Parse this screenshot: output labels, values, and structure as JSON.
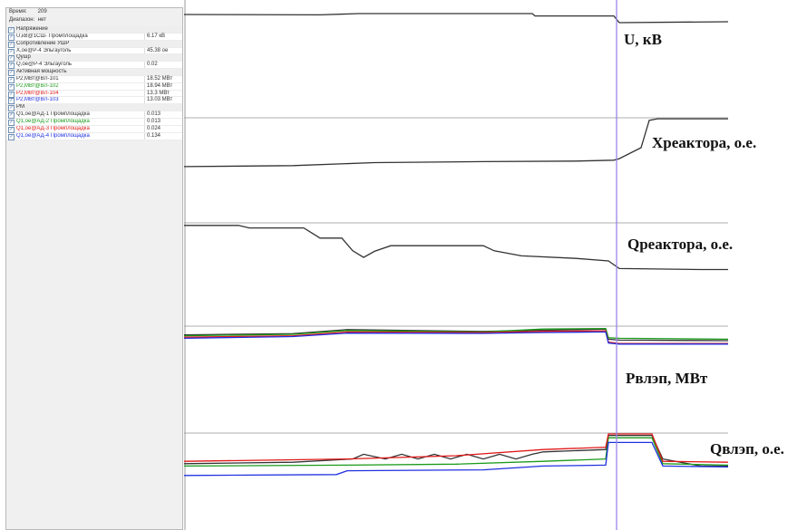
{
  "info": {
    "time_label": "Время:",
    "time_value": "209",
    "range_label": "Диапазон:",
    "range_value": "нет"
  },
  "signals": [
    {
      "name": "Напряжение",
      "value": "",
      "group": true
    },
    {
      "name": "U,кВ@1СШ- Промплощадка",
      "value": "6.17 кВ",
      "color": "#333333"
    },
    {
      "name": "Сопротивление УШР",
      "value": "",
      "group": true
    },
    {
      "name": "X,ое@Р-4 Эльгауголь",
      "value": "45.38 ое",
      "color": "#333333"
    },
    {
      "name": "Qушр",
      "value": "",
      "group": true
    },
    {
      "name": "Q,ое@Р-4 Эльгауголь",
      "value": "0.02",
      "color": "#333333"
    },
    {
      "name": "Активная мощность",
      "value": "",
      "group": true
    },
    {
      "name": "P2,МВт@ВЛ-101",
      "value": "18.52 МВт",
      "color": "#333333"
    },
    {
      "name": "P2,МВт@ВЛ-102",
      "value": "18.94 МВт",
      "color": "#1a9a1a"
    },
    {
      "name": "P2,МВт@ВЛ-104",
      "value": "13.3 МВт",
      "color": "#e01818"
    },
    {
      "name": "P2,МВт@ВЛ-103",
      "value": "13.03 МВт",
      "color": "#2030e0"
    },
    {
      "name": "PM",
      "value": "",
      "group": true
    },
    {
      "name": "Q1,ое@АД-1 Промплощадка",
      "value": "0.013",
      "color": "#333333"
    },
    {
      "name": "Q1,ое@АД-2 Промплощадка",
      "value": "0.013",
      "color": "#1a9a1a"
    },
    {
      "name": "Q1,ое@АД-3 Промплощадка",
      "value": "0.024",
      "color": "#e01818"
    },
    {
      "name": "Q1,ое@АД-4 Промплощадка",
      "value": "0.134",
      "color": "#2030e0"
    }
  ],
  "chart_data": {
    "type": "line",
    "channels": [
      {
        "label": "U, кВ",
        "series": [
          {
            "color": "#333333",
            "points": [
              [
                0,
                0.3
              ],
              [
                0.25,
                0.32
              ],
              [
                0.32,
                0.25
              ],
              [
                0.64,
                0.25
              ],
              [
                0.645,
                0.38
              ],
              [
                0.79,
                0.38
              ],
              [
                0.8,
                0.75
              ],
              [
                1,
                0.7
              ]
            ]
          }
        ]
      },
      {
        "label": "Xреактора, о.е.",
        "series": [
          {
            "color": "#333333",
            "points": [
              [
                0,
                0.98
              ],
              [
                0.2,
                0.96
              ],
              [
                0.35,
                0.9
              ],
              [
                0.55,
                0.88
              ],
              [
                0.72,
                0.87
              ],
              [
                0.79,
                0.85
              ],
              [
                0.8,
                0.82
              ],
              [
                0.84,
                0.6
              ],
              [
                0.855,
                0.05
              ],
              [
                0.87,
                0.02
              ],
              [
                1,
                0.02
              ]
            ]
          }
        ]
      },
      {
        "label": "Qреактора, о.е.",
        "series": [
          {
            "color": "#333333",
            "points": [
              [
                0,
                0.05
              ],
              [
                0.1,
                0.05
              ],
              [
                0.12,
                0.1
              ],
              [
                0.22,
                0.1
              ],
              [
                0.25,
                0.3
              ],
              [
                0.29,
                0.3
              ],
              [
                0.31,
                0.55
              ],
              [
                0.33,
                0.68
              ],
              [
                0.35,
                0.56
              ],
              [
                0.38,
                0.45
              ],
              [
                0.55,
                0.45
              ],
              [
                0.57,
                0.55
              ],
              [
                0.62,
                0.65
              ],
              [
                0.72,
                0.7
              ],
              [
                0.78,
                0.75
              ],
              [
                0.8,
                0.9
              ],
              [
                0.95,
                0.92
              ],
              [
                1,
                0.92
              ]
            ]
          }
        ]
      },
      {
        "label": "Pвлэп, МВт",
        "series": [
          {
            "color": "#333333",
            "points": [
              [
                0,
                0.3
              ],
              [
                0.2,
                0.26
              ],
              [
                0.3,
                0.12
              ],
              [
                0.55,
                0.18
              ],
              [
                0.66,
                0.14
              ],
              [
                0.775,
                0.1
              ],
              [
                0.78,
                0.45
              ],
              [
                0.8,
                0.48
              ],
              [
                1,
                0.5
              ]
            ]
          },
          {
            "color": "#1a9a1a",
            "points": [
              [
                0,
                0.33
              ],
              [
                0.2,
                0.28
              ],
              [
                0.3,
                0.15
              ],
              [
                0.55,
                0.2
              ],
              [
                0.66,
                0.1
              ],
              [
                0.775,
                0.08
              ],
              [
                0.78,
                0.4
              ],
              [
                0.8,
                0.42
              ],
              [
                1,
                0.45
              ]
            ]
          },
          {
            "color": "#e01818",
            "points": [
              [
                0,
                0.38
              ],
              [
                0.2,
                0.33
              ],
              [
                0.3,
                0.2
              ],
              [
                0.55,
                0.22
              ],
              [
                0.66,
                0.18
              ],
              [
                0.775,
                0.16
              ],
              [
                0.78,
                0.55
              ],
              [
                0.8,
                0.6
              ],
              [
                1,
                0.6
              ]
            ]
          },
          {
            "color": "#2030e0",
            "points": [
              [
                0,
                0.42
              ],
              [
                0.2,
                0.36
              ],
              [
                0.3,
                0.24
              ],
              [
                0.55,
                0.25
              ],
              [
                0.66,
                0.22
              ],
              [
                0.775,
                0.2
              ],
              [
                0.78,
                0.58
              ],
              [
                0.8,
                0.62
              ],
              [
                1,
                0.62
              ]
            ]
          }
        ]
      },
      {
        "label": "Qвлэп, о.е.",
        "series": [
          {
            "color": "#333333",
            "points": [
              [
                0,
                0.65
              ],
              [
                0.2,
                0.62
              ],
              [
                0.31,
                0.55
              ],
              [
                0.33,
                0.45
              ],
              [
                0.37,
                0.55
              ],
              [
                0.4,
                0.45
              ],
              [
                0.43,
                0.55
              ],
              [
                0.46,
                0.45
              ],
              [
                0.49,
                0.55
              ],
              [
                0.52,
                0.45
              ],
              [
                0.55,
                0.55
              ],
              [
                0.58,
                0.45
              ],
              [
                0.61,
                0.55
              ],
              [
                0.64,
                0.45
              ],
              [
                0.66,
                0.4
              ],
              [
                0.775,
                0.35
              ],
              [
                0.78,
                0.05
              ],
              [
                0.86,
                0.05
              ],
              [
                0.88,
                0.55
              ],
              [
                0.95,
                0.7
              ],
              [
                1,
                0.7
              ]
            ]
          },
          {
            "color": "#1a9a1a",
            "points": [
              [
                0,
                0.7
              ],
              [
                0.3,
                0.68
              ],
              [
                0.5,
                0.66
              ],
              [
                0.66,
                0.6
              ],
              [
                0.775,
                0.55
              ],
              [
                0.78,
                0.1
              ],
              [
                0.86,
                0.1
              ],
              [
                0.88,
                0.65
              ],
              [
                1,
                0.68
              ]
            ]
          },
          {
            "color": "#e01818",
            "points": [
              [
                0,
                0.6
              ],
              [
                0.3,
                0.55
              ],
              [
                0.5,
                0.48
              ],
              [
                0.66,
                0.35
              ],
              [
                0.775,
                0.3
              ],
              [
                0.78,
                0.02
              ],
              [
                0.86,
                0.02
              ],
              [
                0.88,
                0.6
              ],
              [
                1,
                0.62
              ]
            ]
          },
          {
            "color": "#2030e0",
            "points": [
              [
                0,
                0.9
              ],
              [
                0.28,
                0.88
              ],
              [
                0.3,
                0.8
              ],
              [
                0.55,
                0.78
              ],
              [
                0.66,
                0.7
              ],
              [
                0.775,
                0.68
              ],
              [
                0.78,
                0.2
              ],
              [
                0.86,
                0.2
              ],
              [
                0.88,
                0.7
              ],
              [
                1,
                0.72
              ]
            ]
          }
        ]
      }
    ],
    "cursor_fraction": 0.795
  }
}
